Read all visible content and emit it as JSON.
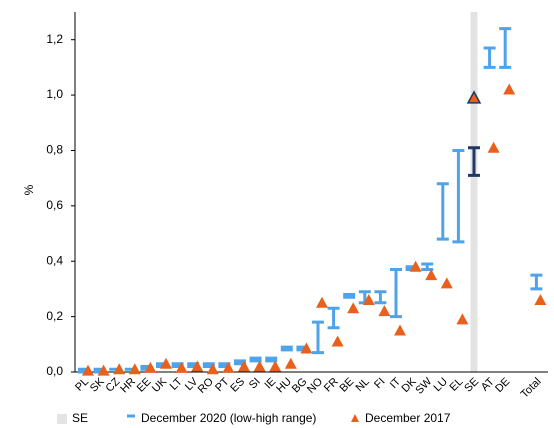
{
  "chart_data": {
    "type": "range",
    "y_label": "%",
    "categories": [
      "PL",
      "SK",
      "CZ",
      "HR",
      "EE",
      "UK",
      "LT",
      "LV",
      "RO",
      "PT",
      "ES",
      "SI",
      "IE",
      "HU",
      "BG",
      "NO",
      "FR",
      "BE",
      "NL",
      "FI",
      "IT",
      "DK",
      "SW",
      "LU",
      "EL",
      "SE",
      "AT",
      "DE",
      null,
      "Total"
    ],
    "highlight": {
      "label": "SE",
      "color": "#e3e3e3",
      "mark_color": "#1f3864"
    },
    "series": [
      {
        "name": "December 2020 (low-high range)",
        "color": "#4ea3ea",
        "low": [
          0,
          0,
          0.01,
          0.01,
          0.01,
          0.02,
          0.02,
          0.02,
          0.02,
          0.02,
          0.03,
          0.04,
          0.04,
          0.08,
          0.08,
          0.07,
          0.16,
          0.27,
          0.25,
          0.25,
          0.2,
          0.37,
          0.37,
          0.48,
          0.47,
          0.71,
          1.1,
          1.1,
          null,
          0.3
        ],
        "high": [
          0.01,
          0.01,
          0.01,
          0.01,
          0.02,
          0.03,
          0.03,
          0.03,
          0.03,
          0.03,
          0.04,
          0.05,
          0.05,
          0.09,
          0.09,
          0.18,
          0.23,
          0.28,
          0.29,
          0.29,
          0.37,
          0.38,
          0.39,
          0.68,
          0.8,
          0.81,
          1.17,
          1.24,
          null,
          0.35
        ]
      },
      {
        "name": "December 2017",
        "color": "#e8601c",
        "values": [
          0.005,
          0.005,
          0.01,
          0.01,
          0.015,
          0.03,
          0.015,
          0.02,
          0.01,
          0.015,
          0.02,
          0.02,
          0.02,
          0.03,
          0.085,
          0.25,
          0.11,
          0.23,
          0.26,
          0.22,
          0.15,
          0.38,
          0.35,
          0.32,
          0.19,
          0.99,
          0.81,
          1.02,
          null,
          0.26
        ]
      }
    ],
    "ylim": [
      0,
      1.3
    ],
    "yticks": [
      {
        "value": 0,
        "label": "0,0"
      },
      {
        "value": 0.2,
        "label": "0,2"
      },
      {
        "value": 0.4,
        "label": "0,4"
      },
      {
        "value": 0.6,
        "label": "0,6"
      },
      {
        "value": 0.8,
        "label": "0,8"
      },
      {
        "value": 1.0,
        "label": "1,0"
      },
      {
        "value": 1.2,
        "label": "1,2"
      }
    ]
  }
}
